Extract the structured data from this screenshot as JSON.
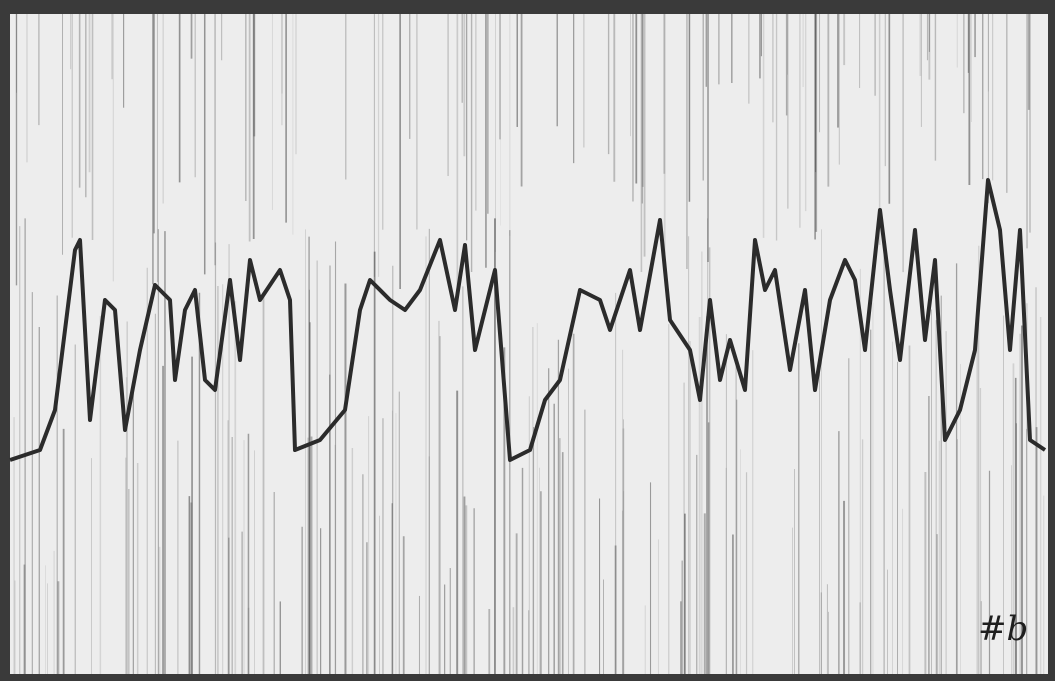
{
  "label": "#b"
}
